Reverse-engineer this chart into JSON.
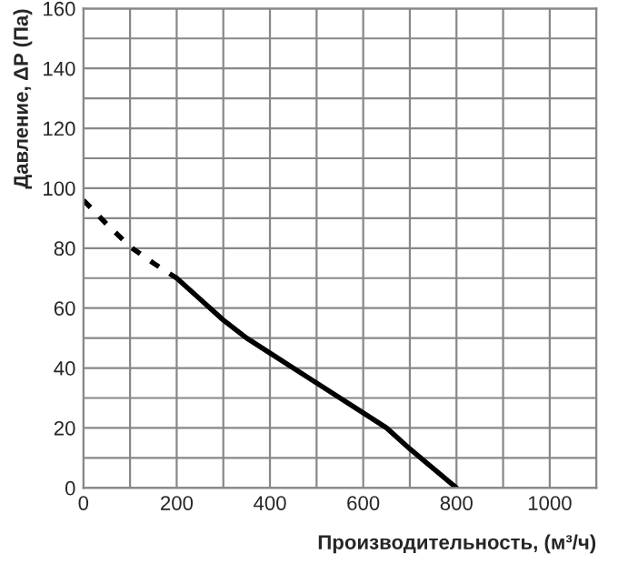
{
  "chart_data": {
    "type": "line",
    "xlabel": "Производительность, (м³/ч)",
    "ylabel": "Давление, ΔP (Па)",
    "xlim": [
      0,
      1100
    ],
    "ylim": [
      0,
      160
    ],
    "xticks": [
      0,
      {
        "value": 100,
        "label": null
      },
      200,
      {
        "value": 300,
        "label": null
      },
      400,
      {
        "value": 500,
        "label": null
      },
      600,
      {
        "value": 700,
        "label": null
      },
      800,
      {
        "value": 900,
        "label": null
      },
      1000,
      {
        "value": 1100,
        "label": null
      }
    ],
    "yticks": [
      0,
      {
        "value": 10,
        "label": null
      },
      20,
      {
        "value": 30,
        "label": null
      },
      40,
      {
        "value": 50,
        "label": null
      },
      60,
      {
        "value": 70,
        "label": null
      },
      80,
      {
        "value": 90,
        "label": null
      },
      100,
      {
        "value": 110,
        "label": null
      },
      120,
      {
        "value": 130,
        "label": null
      },
      140,
      {
        "value": 150,
        "label": null
      },
      160
    ],
    "grid": true,
    "marker": "none",
    "series": [
      {
        "color": "#000000",
        "line_style": "dotted",
        "x": [
          0,
          25,
          50,
          100,
          150,
          200
        ],
        "values": [
          96,
          92,
          88,
          80.5,
          75,
          70
        ]
      },
      {
        "color": "#000000",
        "line_style": "solid",
        "x": [
          200,
          250,
          300,
          350,
          400,
          500,
          600,
          650,
          700,
          750,
          800
        ],
        "values": [
          70,
          63,
          56,
          50,
          45,
          35,
          25,
          20,
          13,
          6.5,
          0
        ]
      }
    ]
  }
}
